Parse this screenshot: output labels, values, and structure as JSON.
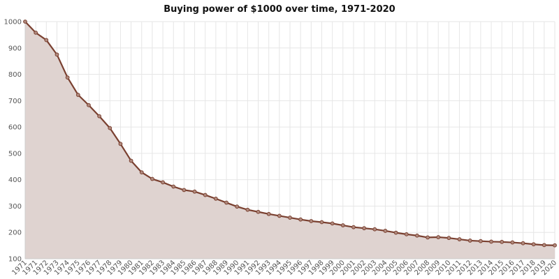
{
  "chart_data": {
    "type": "area",
    "title": "Buying power of $1000 over time, 1971-2020",
    "xlabel": "",
    "ylabel": "",
    "ylim": [
      100,
      1000
    ],
    "yticks": [
      100,
      200,
      300,
      400,
      500,
      600,
      700,
      800,
      900,
      1000
    ],
    "grid": true,
    "legend": "none",
    "categories": [
      "1971",
      "1971",
      "1972",
      "1973",
      "1974",
      "1975",
      "1976",
      "1977",
      "1978",
      "1979",
      "1980",
      "1981",
      "1982",
      "1983",
      "1984",
      "1985",
      "1986",
      "1987",
      "1988",
      "1989",
      "1990",
      "1991",
      "1992",
      "1993",
      "1994",
      "1995",
      "1996",
      "1997",
      "1998",
      "1999",
      "2000",
      "2001",
      "2002",
      "2003",
      "2004",
      "2005",
      "2006",
      "2007",
      "2008",
      "2009",
      "2010",
      "2011",
      "2012",
      "2013",
      "2014",
      "2015",
      "2016",
      "2017",
      "2018",
      "2019",
      "2020"
    ],
    "series": [
      {
        "values": [
          1000,
          958,
          930,
          875,
          788,
          722,
          683,
          641,
          596,
          536,
          472,
          428,
          403,
          390,
          374,
          361,
          355,
          342,
          328,
          313,
          298,
          286,
          278,
          270,
          263,
          256,
          249,
          243,
          239,
          234,
          227,
          220,
          216,
          212,
          206,
          199,
          193,
          188,
          181,
          182,
          179,
          174,
          169,
          167,
          165,
          164,
          162,
          159,
          155,
          152,
          151
        ]
      }
    ],
    "colors": {
      "line": "#7a4030",
      "marker_fill": "#b08a7e",
      "area": "#dfd3d0",
      "grid": "#e6e6e6",
      "axis": "#cccccc"
    }
  }
}
